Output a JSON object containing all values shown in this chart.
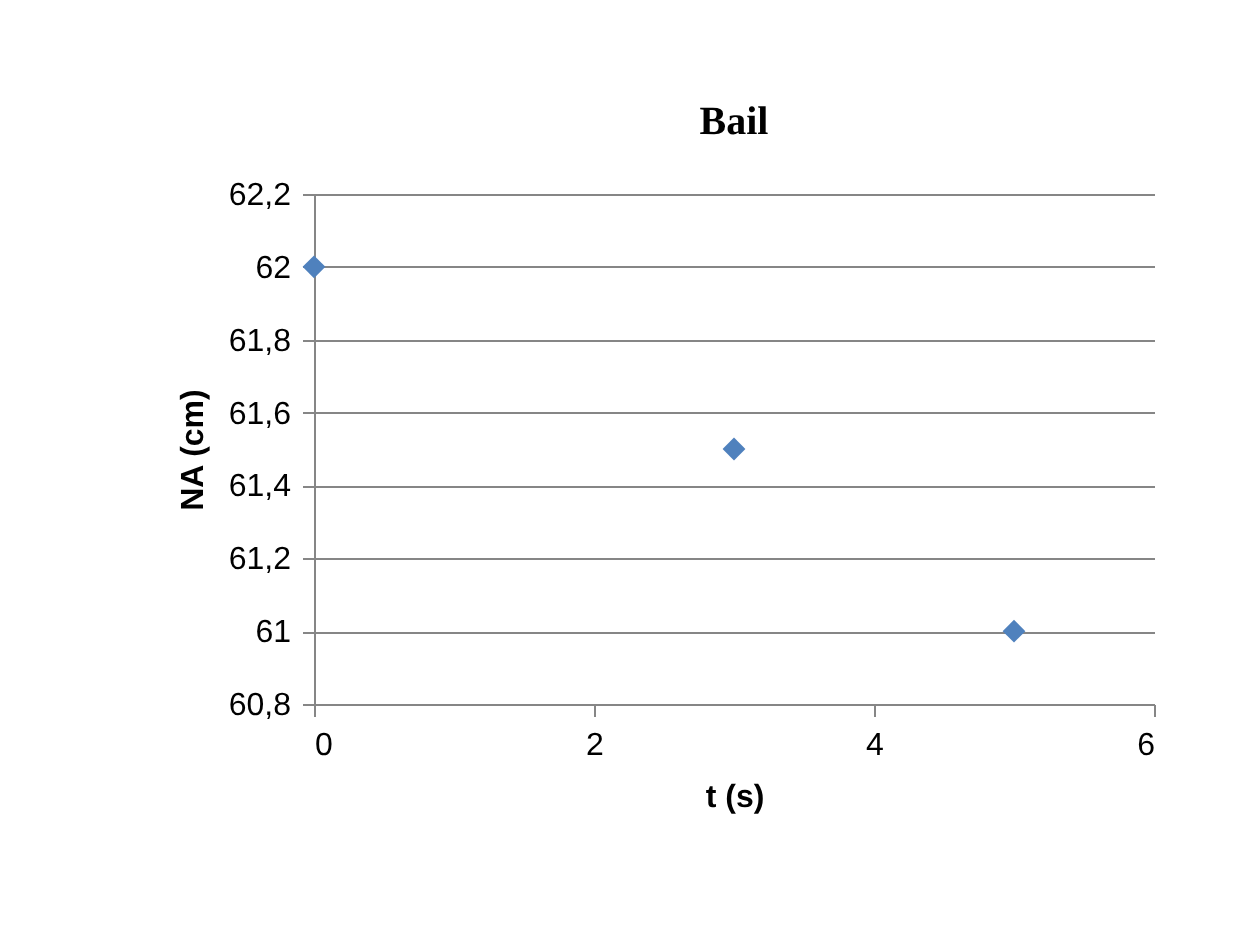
{
  "chart_data": {
    "type": "scatter",
    "title": "Bail",
    "xlabel": "t (s)",
    "ylabel": "NA (cm)",
    "x": [
      0,
      3,
      5
    ],
    "series": [
      {
        "color": "#4f81bd",
        "values": [
          62,
          61.5,
          61
        ]
      }
    ],
    "xlim": [
      0,
      6
    ],
    "xticks": [
      0,
      2,
      4,
      6
    ],
    "ylim": [
      60.8,
      62.2
    ],
    "yticks": [
      {
        "value": 60.8,
        "label": "60,8"
      },
      {
        "value": 61,
        "label": "61"
      },
      {
        "value": 61.2,
        "label": "61,2"
      },
      {
        "value": 61.4,
        "label": "61,4"
      },
      {
        "value": 61.6,
        "label": "61,6"
      },
      {
        "value": 61.8,
        "label": "61,8"
      },
      {
        "value": 62,
        "label": "62"
      },
      {
        "value": 62.2,
        "label": "62,2"
      }
    ],
    "grid": "y",
    "marker": "diamond",
    "legend": false
  }
}
